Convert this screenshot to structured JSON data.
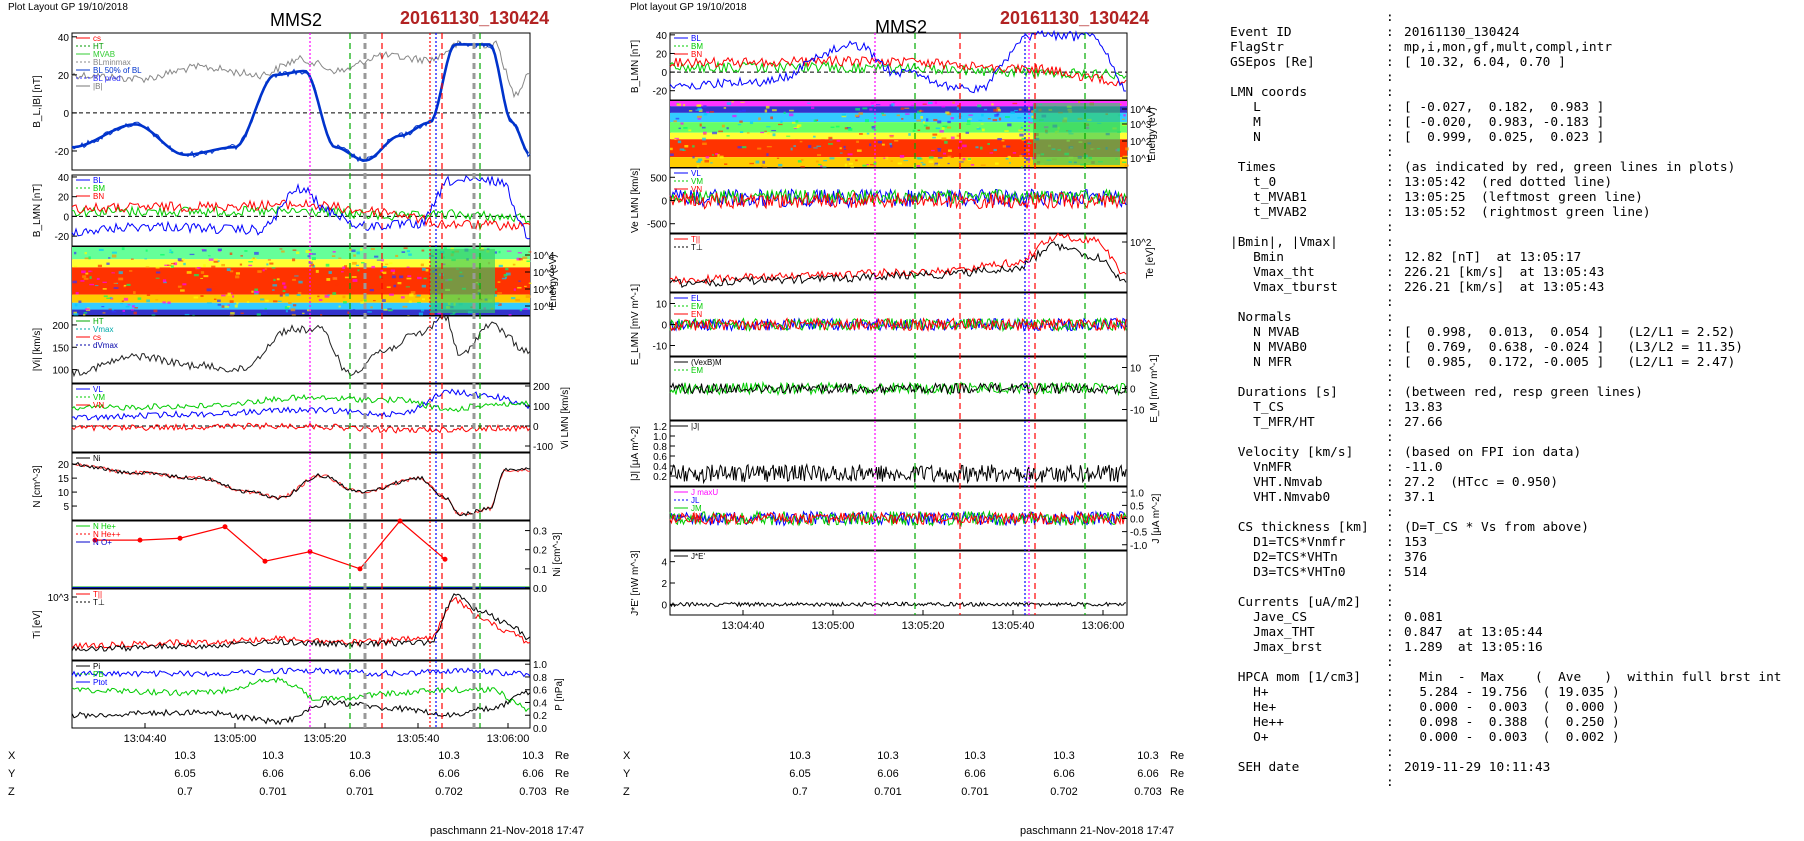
{
  "header": {
    "left_caption": "Plot Layout GP 19/10/2018",
    "middle_caption": "Plot layout GP 19/10/2018",
    "spacecraft": "MMS2",
    "event_id": "20161130_130424"
  },
  "footers": {
    "left": "paschmann 21-Nov-2018 17:47",
    "middle": "paschmann 21-Nov-2018 17:47"
  },
  "time_axis": {
    "left_ticks": [
      "13:04:40",
      "13:05:00",
      "13:05:20",
      "13:05:40",
      "13:06:00"
    ],
    "middle_ticks": [
      "13:04:40",
      "13:05:00",
      "13:05:20",
      "13:05:40",
      "13:06:00"
    ],
    "coords": {
      "rows": [
        {
          "label": "X",
          "values": [
            "10.3",
            "10.3",
            "10.3",
            "10.3",
            "10.3"
          ],
          "unit": "Re"
        },
        {
          "label": "Y",
          "values": [
            "6.05",
            "6.06",
            "6.06",
            "6.06",
            "6.06"
          ],
          "unit": "Re"
        },
        {
          "label": "Z",
          "values": [
            "0.7",
            "0.701",
            "0.701",
            "0.702",
            "0.703"
          ],
          "unit": "Re"
        }
      ]
    }
  },
  "chart_data": [
    {
      "panel": "left-1",
      "type": "line",
      "ylabel": "B_L,|B| [nT]",
      "ylim": [
        -30,
        42
      ],
      "yticks": [
        "40",
        "20",
        "0",
        "-20"
      ],
      "legend": [
        "cs",
        "HT",
        "MVAB",
        "BLminmax",
        "BL 50% of BL",
        "BL pred",
        "|B|"
      ],
      "colors": {
        "bl": "#0033cc",
        "babs": "#888888",
        "t0": "#ff0000",
        "mvab": "#00aa00",
        "ht": "#999999"
      }
    },
    {
      "panel": "left-2",
      "type": "line",
      "ylabel": "B_LMN [nT]",
      "legend": [
        "BL",
        "BM",
        "BN"
      ],
      "yticks": [
        "40",
        "20",
        "0",
        "-20"
      ]
    },
    {
      "panel": "left-3",
      "type": "heatmap",
      "ylabel": "Energy (eV)",
      "yticks": [
        "10^4",
        "10^3",
        "10^2",
        "10^1"
      ]
    },
    {
      "panel": "left-4",
      "type": "line",
      "ylabel": "|Vi| [km/s]",
      "legend": [
        "HT",
        "Vmax",
        "cs",
        "dVmax"
      ],
      "yticks": [
        "200",
        "150",
        "100"
      ]
    },
    {
      "panel": "left-5",
      "type": "line",
      "ylabel": "Vi LMN [km/s]",
      "legend": [
        "VL",
        "VM",
        "VN"
      ],
      "yticks": [
        "200",
        "100",
        "0",
        "-100"
      ]
    },
    {
      "panel": "left-6",
      "type": "line",
      "ylabel": "N [cm^-3]",
      "legend": [
        "Ni"
      ],
      "yticks": [
        "20",
        "15",
        "10",
        "5"
      ]
    },
    {
      "panel": "left-7",
      "type": "line",
      "ylabel": "Ni [cm^-3]",
      "legend": [
        "N He+",
        "N He++",
        "N O+"
      ],
      "yticks": [
        "0.3",
        "0.2",
        "0.1",
        "0.0"
      ]
    },
    {
      "panel": "left-8",
      "type": "line",
      "ylabel": "Ti [eV]",
      "legend": [
        "T||",
        "T⊥"
      ],
      "yticks": [
        "10^3"
      ]
    },
    {
      "panel": "left-9",
      "type": "line",
      "ylabel": "P [nPa]",
      "legend": [
        "Pi",
        "PB",
        "Ptot"
      ],
      "yticks": [
        "1.0",
        "0.8",
        "0.6",
        "0.4",
        "0.2",
        "0.0"
      ]
    },
    {
      "panel": "mid-1",
      "type": "line",
      "ylabel": "B_LMN [nT]",
      "legend": [
        "BL",
        "BM",
        "BN"
      ],
      "yticks": [
        "40",
        "20",
        "0",
        "-20"
      ]
    },
    {
      "panel": "mid-2",
      "type": "heatmap",
      "ylabel": "Energy (eV)",
      "yticks": [
        "10^4",
        "10^3",
        "10^2",
        "10^1"
      ]
    },
    {
      "panel": "mid-3",
      "type": "line",
      "ylabel": "Ve LMN [km/s]",
      "legend": [
        "VL",
        "VM",
        "VN"
      ],
      "yticks": [
        "500",
        "0",
        "-500"
      ]
    },
    {
      "panel": "mid-4",
      "type": "line",
      "ylabel": "Te [eV]",
      "legend": [
        "T||",
        "T⊥"
      ],
      "yticks": [
        "10^2"
      ]
    },
    {
      "panel": "mid-5",
      "type": "line",
      "ylabel": "E_LMN [mV m^-1]",
      "legend": [
        "EL",
        "EM",
        "EN"
      ],
      "yticks": [
        "10",
        "0",
        "-10"
      ]
    },
    {
      "panel": "mid-6",
      "type": "line",
      "ylabel": "E_M [mV m^-1]",
      "legend": [
        "(VexB)M",
        "EM"
      ],
      "yticks": [
        "10",
        "0",
        "-10"
      ]
    },
    {
      "panel": "mid-7",
      "type": "line",
      "ylabel": "|J| [μA m^-2]",
      "legend": [
        "|J|"
      ],
      "yticks": [
        "1.2",
        "1.0",
        "0.8",
        "0.6",
        "0.4",
        "0.2"
      ]
    },
    {
      "panel": "mid-8",
      "type": "line",
      "ylabel": "J [μA m^-2]",
      "legend": [
        "J maxU",
        "JL",
        "JM",
        "JN"
      ],
      "yticks": [
        "1.0",
        "0.5",
        "0.0",
        "-0.5",
        "-1.0"
      ]
    },
    {
      "panel": "mid-9",
      "type": "line",
      "ylabel": "J*E' [nW m^-3]",
      "legend": [
        "J*E'"
      ],
      "yticks": [
        "4",
        "2",
        "0"
      ]
    }
  ],
  "summary": [
    {
      "k": "",
      "v": ""
    },
    {
      "k": "Event ID",
      "v": "20161130_130424"
    },
    {
      "k": "FlagStr",
      "v": "mp,i,mon,gf,mult,compl,intr"
    },
    {
      "k": "GSEpos [Re]",
      "v": "[ 10.32, 6.04, 0.70 ]"
    },
    {
      "k": "",
      "v": ""
    },
    {
      "k": "LMN coords",
      "v": ""
    },
    {
      "k": "   L",
      "v": "[ -0.027,  0.182,  0.983 ]"
    },
    {
      "k": "   M",
      "v": "[ -0.020,  0.983, -0.183 ]"
    },
    {
      "k": "   N",
      "v": "[  0.999,  0.025,  0.023 ]"
    },
    {
      "k": "",
      "v": ""
    },
    {
      "k": " Times",
      "v": "(as indicated by red, green lines in plots)"
    },
    {
      "k": "   t_0",
      "v": "13:05:42  (red dotted line)"
    },
    {
      "k": "   t_MVAB1",
      "v": "13:05:25  (leftmost green line)"
    },
    {
      "k": "   t_MVAB2",
      "v": "13:05:52  (rightmost green line)"
    },
    {
      "k": "",
      "v": ""
    },
    {
      "k": "|Bmin|, |Vmax|",
      "v": ""
    },
    {
      "k": "   Bmin",
      "v": "12.82 [nT]  at 13:05:17"
    },
    {
      "k": "   Vmax_tht",
      "v": "226.21 [km/s]  at 13:05:43"
    },
    {
      "k": "   Vmax_tburst",
      "v": "226.21 [km/s]  at 13:05:43"
    },
    {
      "k": "",
      "v": ""
    },
    {
      "k": " Normals",
      "v": ""
    },
    {
      "k": "   N MVAB",
      "v": "[  0.998,  0.013,  0.054 ]   (L2/L1 = 2.52)"
    },
    {
      "k": "   N MVAB0",
      "v": "[  0.769,  0.638, -0.024 ]   (L3/L2 = 11.35)"
    },
    {
      "k": "   N MFR",
      "v": "[  0.985,  0.172, -0.005 ]   (L2/L1 = 2.47)"
    },
    {
      "k": "",
      "v": ""
    },
    {
      "k": " Durations [s]",
      "v": "(between red, resp green lines)"
    },
    {
      "k": "   T_CS",
      "v": "13.83"
    },
    {
      "k": "   T_MFR/HT",
      "v": "27.66"
    },
    {
      "k": "",
      "v": ""
    },
    {
      "k": " Velocity [km/s]",
      "v": "(based on FPI ion data)"
    },
    {
      "k": "   VnMFR",
      "v": "-11.0"
    },
    {
      "k": "   VHT.Nmvab",
      "v": "27.2  (HTcc = 0.950)"
    },
    {
      "k": "   VHT.Nmvab0",
      "v": "37.1"
    },
    {
      "k": "",
      "v": ""
    },
    {
      "k": " CS thickness [km]",
      "v": "(D=T_CS * Vs from above)"
    },
    {
      "k": "   D1=TCS*Vnmfr",
      "v": "153"
    },
    {
      "k": "   D2=TCS*VHTn",
      "v": "376"
    },
    {
      "k": "   D3=TCS*VHTn0",
      "v": "514"
    },
    {
      "k": "",
      "v": ""
    },
    {
      "k": " Currents [uA/m2]",
      "v": ""
    },
    {
      "k": "   Jave_CS",
      "v": "0.081"
    },
    {
      "k": "   Jmax_THT",
      "v": "0.847  at 13:05:44"
    },
    {
      "k": "   Jmax_brst",
      "v": "1.289  at 13:05:16"
    },
    {
      "k": "",
      "v": ""
    },
    {
      "k": " HPCA mom [1/cm3]",
      "v": "  Min  -  Max    (  Ave   )  within full brst int"
    },
    {
      "k": "   H+",
      "v": "  5.284 - 19.756  ( 19.035 )"
    },
    {
      "k": "   He+",
      "v": "  0.000 -  0.003  (  0.000 )"
    },
    {
      "k": "   He++",
      "v": "  0.098 -  0.388  (  0.250 )"
    },
    {
      "k": "   O+",
      "v": "  0.000 -  0.003  (  0.002 )"
    },
    {
      "k": "",
      "v": ""
    },
    {
      "k": " SEH date",
      "v": "2019-11-29 10:11:43"
    },
    {
      "k": "",
      "v": ""
    }
  ]
}
